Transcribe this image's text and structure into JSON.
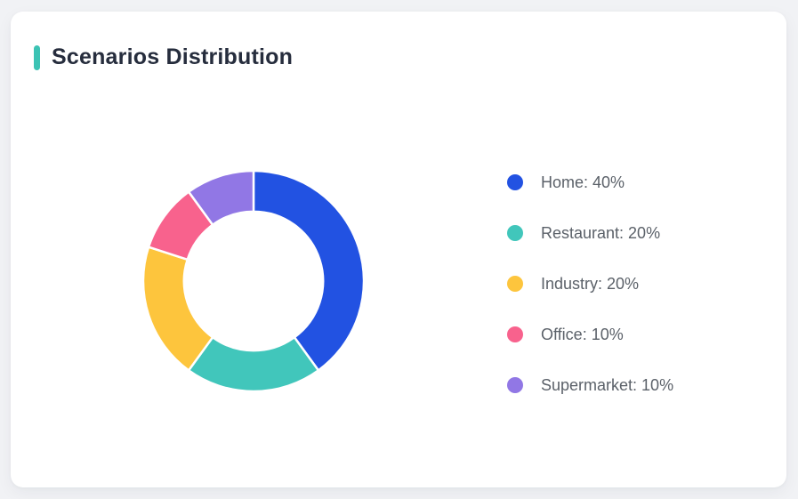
{
  "page": {
    "background_color": "#F1F2F5"
  },
  "card": {
    "title": "Scenarios Distribution",
    "accent_color": "#3CC3B4",
    "background_color": "#FFFFFF"
  },
  "chart_data": {
    "type": "pie",
    "subtype": "donut",
    "title": "Scenarios Distribution",
    "categories": [
      "Home",
      "Restaurant",
      "Industry",
      "Office",
      "Supermarket"
    ],
    "values": [
      40,
      20,
      20,
      10,
      10
    ],
    "unit": "%",
    "colors": [
      "#2252E2",
      "#41C6BB",
      "#FDC53D",
      "#F8628D",
      "#9177E5"
    ],
    "start_angle": "top",
    "direction": "clockwise",
    "inner_radius_ratio": 0.63,
    "segment_border_color": "#FFFFFF",
    "legend_position": "right",
    "legend_labels": [
      "Home: 40%",
      "Restaurant: 20%",
      "Industry: 20%",
      "Office: 10%",
      "Supermarket: 10%"
    ]
  }
}
